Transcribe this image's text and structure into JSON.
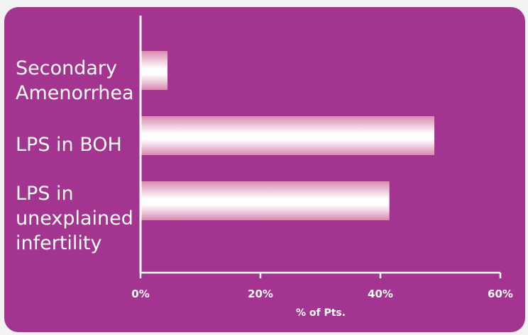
{
  "chart_data": {
    "type": "bar",
    "orientation": "horizontal",
    "categories": [
      [
        "Secondary",
        "Amenorrhea"
      ],
      [
        "LPS in BOH"
      ],
      [
        "LPS in",
        "unexplained",
        "infertility"
      ]
    ],
    "values": [
      4.5,
      49,
      41.5
    ],
    "xlim": [
      0,
      60
    ],
    "xticks": [
      0,
      20,
      40,
      60
    ],
    "xtick_labels": [
      "0%",
      "20%",
      "40%",
      "60%"
    ],
    "xlabel": "% of Pts.",
    "grid": false,
    "colors": {
      "background": "#a3348f",
      "bar_light": "#ffffff",
      "bar_dark": "#d98ab0",
      "axis": "#ffffff",
      "text": "#ffffff"
    }
  }
}
